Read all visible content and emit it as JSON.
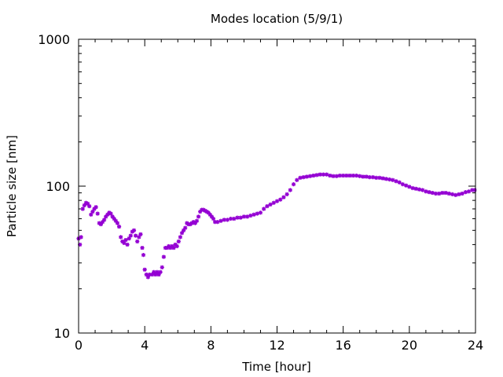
{
  "chart_data": {
    "type": "scatter",
    "title": "Modes location (5/9/1)",
    "xlabel": "Time [hour]",
    "ylabel": "Particle size [nm]",
    "xlim": [
      0,
      24
    ],
    "ylim": [
      10,
      1000
    ],
    "yscale": "log",
    "grid": false,
    "legend": "none",
    "marker_color": "#9400d3",
    "x_ticks": [
      0,
      4,
      8,
      12,
      16,
      20,
      24
    ],
    "x_tick_labels": [
      "0",
      "4",
      "8",
      "12",
      "16",
      "20",
      "24"
    ],
    "y_ticks": [
      10,
      100,
      1000
    ],
    "y_tick_labels": [
      "10",
      "100",
      "1000"
    ],
    "series": [
      {
        "points": [
          [
            0.0,
            44
          ],
          [
            0.08,
            40
          ],
          [
            0.15,
            45
          ],
          [
            0.25,
            70
          ],
          [
            0.35,
            74
          ],
          [
            0.45,
            77
          ],
          [
            0.55,
            76
          ],
          [
            0.65,
            73
          ],
          [
            0.75,
            64
          ],
          [
            0.85,
            67
          ],
          [
            0.95,
            70
          ],
          [
            1.05,
            72
          ],
          [
            1.15,
            65
          ],
          [
            1.25,
            56
          ],
          [
            1.35,
            55
          ],
          [
            1.45,
            57
          ],
          [
            1.55,
            59
          ],
          [
            1.65,
            62
          ],
          [
            1.75,
            64
          ],
          [
            1.85,
            66
          ],
          [
            1.95,
            65
          ],
          [
            2.05,
            62
          ],
          [
            2.15,
            60
          ],
          [
            2.25,
            58
          ],
          [
            2.35,
            56
          ],
          [
            2.45,
            53
          ],
          [
            2.55,
            45
          ],
          [
            2.65,
            42
          ],
          [
            2.75,
            41
          ],
          [
            2.85,
            43
          ],
          [
            2.95,
            40
          ],
          [
            3.05,
            44
          ],
          [
            3.15,
            46
          ],
          [
            3.25,
            49
          ],
          [
            3.35,
            50
          ],
          [
            3.45,
            46
          ],
          [
            3.55,
            42
          ],
          [
            3.65,
            45
          ],
          [
            3.75,
            47
          ],
          [
            3.85,
            38
          ],
          [
            3.92,
            34
          ],
          [
            4.0,
            27
          ],
          [
            4.1,
            25
          ],
          [
            4.2,
            24
          ],
          [
            4.3,
            25
          ],
          [
            4.45,
            25
          ],
          [
            4.55,
            26
          ],
          [
            4.65,
            25
          ],
          [
            4.75,
            26
          ],
          [
            4.85,
            25
          ],
          [
            4.95,
            26
          ],
          [
            5.05,
            28
          ],
          [
            5.15,
            33
          ],
          [
            5.25,
            38
          ],
          [
            5.35,
            38
          ],
          [
            5.45,
            39
          ],
          [
            5.55,
            38
          ],
          [
            5.65,
            39
          ],
          [
            5.75,
            38
          ],
          [
            5.85,
            40
          ],
          [
            5.95,
            39
          ],
          [
            6.05,
            42
          ],
          [
            6.15,
            45
          ],
          [
            6.25,
            48
          ],
          [
            6.35,
            50
          ],
          [
            6.45,
            52
          ],
          [
            6.55,
            56
          ],
          [
            6.65,
            55
          ],
          [
            6.75,
            55
          ],
          [
            6.85,
            56
          ],
          [
            6.95,
            57
          ],
          [
            7.05,
            56
          ],
          [
            7.15,
            58
          ],
          [
            7.25,
            62
          ],
          [
            7.35,
            67
          ],
          [
            7.45,
            69
          ],
          [
            7.55,
            69
          ],
          [
            7.65,
            68
          ],
          [
            7.75,
            67
          ],
          [
            7.85,
            66
          ],
          [
            7.95,
            64
          ],
          [
            8.05,
            62
          ],
          [
            8.15,
            60
          ],
          [
            8.25,
            57
          ],
          [
            8.4,
            57
          ],
          [
            8.6,
            58
          ],
          [
            8.8,
            59
          ],
          [
            9.0,
            59
          ],
          [
            9.2,
            60
          ],
          [
            9.4,
            60
          ],
          [
            9.6,
            61
          ],
          [
            9.8,
            61
          ],
          [
            10.0,
            62
          ],
          [
            10.2,
            62
          ],
          [
            10.4,
            63
          ],
          [
            10.6,
            64
          ],
          [
            10.8,
            65
          ],
          [
            11.0,
            66
          ],
          [
            11.2,
            70
          ],
          [
            11.4,
            73
          ],
          [
            11.6,
            75
          ],
          [
            11.8,
            77
          ],
          [
            12.0,
            79
          ],
          [
            12.2,
            81
          ],
          [
            12.4,
            84
          ],
          [
            12.6,
            88
          ],
          [
            12.8,
            94
          ],
          [
            13.0,
            103
          ],
          [
            13.2,
            110
          ],
          [
            13.4,
            114
          ],
          [
            13.6,
            115
          ],
          [
            13.8,
            116
          ],
          [
            14.0,
            117
          ],
          [
            14.2,
            118
          ],
          [
            14.4,
            119
          ],
          [
            14.6,
            120
          ],
          [
            14.8,
            120
          ],
          [
            15.0,
            120
          ],
          [
            15.2,
            118
          ],
          [
            15.4,
            117
          ],
          [
            15.6,
            117
          ],
          [
            15.8,
            118
          ],
          [
            16.0,
            118
          ],
          [
            16.2,
            118
          ],
          [
            16.4,
            118
          ],
          [
            16.6,
            118
          ],
          [
            16.8,
            118
          ],
          [
            17.0,
            117
          ],
          [
            17.2,
            116
          ],
          [
            17.4,
            116
          ],
          [
            17.6,
            115
          ],
          [
            17.8,
            115
          ],
          [
            18.0,
            114
          ],
          [
            18.2,
            114
          ],
          [
            18.4,
            113
          ],
          [
            18.6,
            112
          ],
          [
            18.8,
            111
          ],
          [
            19.0,
            110
          ],
          [
            19.2,
            108
          ],
          [
            19.4,
            106
          ],
          [
            19.6,
            103
          ],
          [
            19.8,
            101
          ],
          [
            20.0,
            99
          ],
          [
            20.2,
            97
          ],
          [
            20.4,
            96
          ],
          [
            20.6,
            95
          ],
          [
            20.8,
            94
          ],
          [
            21.0,
            92
          ],
          [
            21.2,
            91
          ],
          [
            21.4,
            90
          ],
          [
            21.6,
            89
          ],
          [
            21.8,
            89
          ],
          [
            22.0,
            90
          ],
          [
            22.2,
            90
          ],
          [
            22.4,
            89
          ],
          [
            22.6,
            88
          ],
          [
            22.8,
            87
          ],
          [
            23.0,
            88
          ],
          [
            23.2,
            89
          ],
          [
            23.4,
            91
          ],
          [
            23.6,
            92
          ],
          [
            23.8,
            94
          ],
          [
            23.95,
            94
          ]
        ]
      }
    ]
  }
}
